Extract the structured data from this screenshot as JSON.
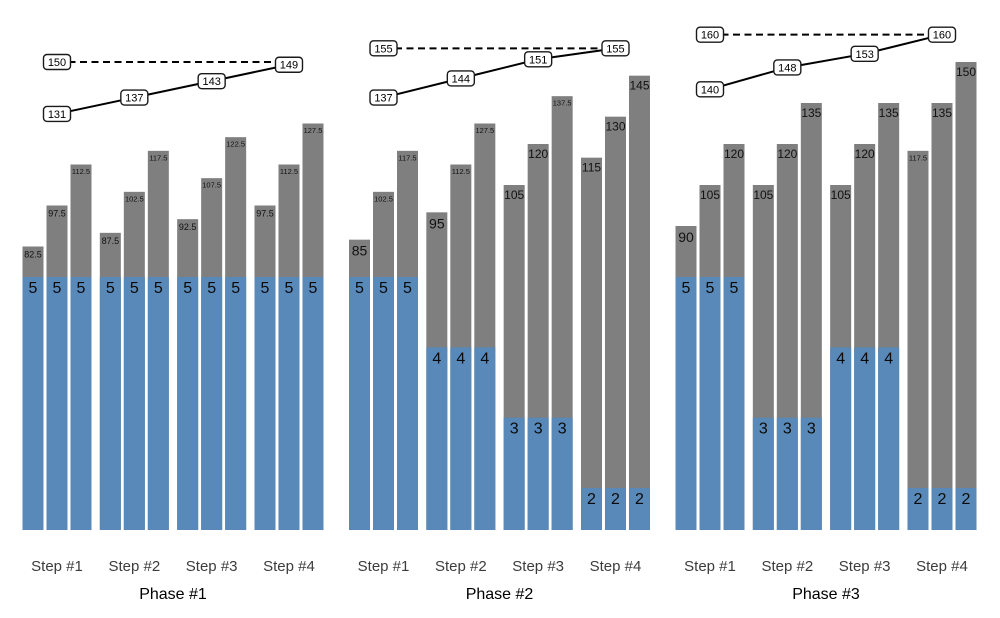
{
  "chart_data": {
    "type": "bar",
    "subtype": "grouped-bars-with-stacked-blue-segments-and-line-overlay",
    "title": "",
    "axes": {
      "visible": false
    },
    "legend": {
      "visible": false
    },
    "colors": {
      "gray_bar": "#7f7f7f",
      "blue_bar": "#5889b8",
      "line": "#000000",
      "label_box_bg": "#ffffff",
      "label_box_border": "#1a1a1a",
      "bar_label": "#111111",
      "blue_label": "#0a0a0a",
      "step_label": "#3c3c3c",
      "phase_label": "#000000"
    },
    "panels": [
      {
        "phase_label": "Phase #1",
        "step_labels": [
          "Step #1",
          "Step #2",
          "Step #3",
          "Step #4"
        ],
        "gray_bars": [
          [
            82.5,
            97.5,
            112.5
          ],
          [
            87.5,
            102.5,
            117.5
          ],
          [
            92.5,
            107.5,
            122.5
          ],
          [
            97.5,
            112.5,
            127.5
          ]
        ],
        "blue_counts": [
          5,
          5,
          5,
          5
        ],
        "solid_line": [
          131,
          137,
          143,
          149
        ],
        "dashed_line": 150
      },
      {
        "phase_label": "Phase #2",
        "step_labels": [
          "Step #1",
          "Step #2",
          "Step #3",
          "Step #4"
        ],
        "gray_bars": [
          [
            85,
            102.5,
            117.5
          ],
          [
            95,
            112.5,
            127.5
          ],
          [
            105,
            120,
            137.5
          ],
          [
            115,
            130,
            145
          ]
        ],
        "blue_counts": [
          5,
          4,
          3,
          2
        ],
        "solid_line": [
          137,
          144,
          151,
          155
        ],
        "dashed_line": 155
      },
      {
        "phase_label": "Phase #3",
        "step_labels": [
          "Step #1",
          "Step #2",
          "Step #3",
          "Step #4"
        ],
        "gray_bars": [
          [
            90,
            105,
            120
          ],
          [
            105,
            120,
            135
          ],
          [
            105,
            120,
            135
          ],
          [
            117.5,
            135,
            150
          ]
        ],
        "blue_counts": [
          5,
          3,
          4,
          2
        ],
        "solid_line": [
          140,
          148,
          153,
          160
        ],
        "dashed_line": 160
      }
    ]
  }
}
